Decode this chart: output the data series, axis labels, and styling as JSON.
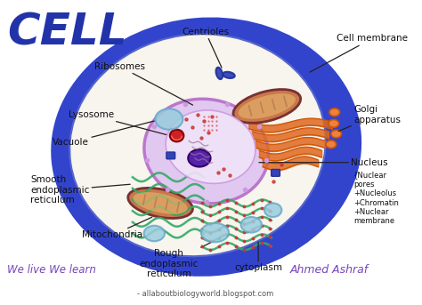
{
  "bg_color": "#ffffff",
  "title": "CELL",
  "title_color": "#2233aa",
  "title_fontsize": 36,
  "cell_outer_color": "#3344cc",
  "cell_inner_color": "#f8f4ee",
  "nucleus_color": "#cc99dd",
  "nucleus_fill": "#e8d0f0",
  "nucleolus_color": "#5522aa",
  "golgi_color": "#e06820",
  "mito_outer": "#7a3030",
  "mito_fill": "#c8784a",
  "mito_stripe": "#aa5533",
  "smooth_er_color": "#33aa66",
  "rough_er_color": "#33aa66",
  "lysosome_fill": "#cc2222",
  "vacuole_fill": "#99ccdd",
  "vacuole_edge": "#66aacc",
  "ribosome_color": "#cc3333",
  "centriole_fill": "#3344bb",
  "label_color": "#111111",
  "footer_text": "We live We learn",
  "footer_color": "#7744bb",
  "author": "Ahmed Ashraf",
  "author_color": "#7744bb",
  "website": "- allaboutbiologyworld.blogspot.com",
  "website_color": "#555555"
}
